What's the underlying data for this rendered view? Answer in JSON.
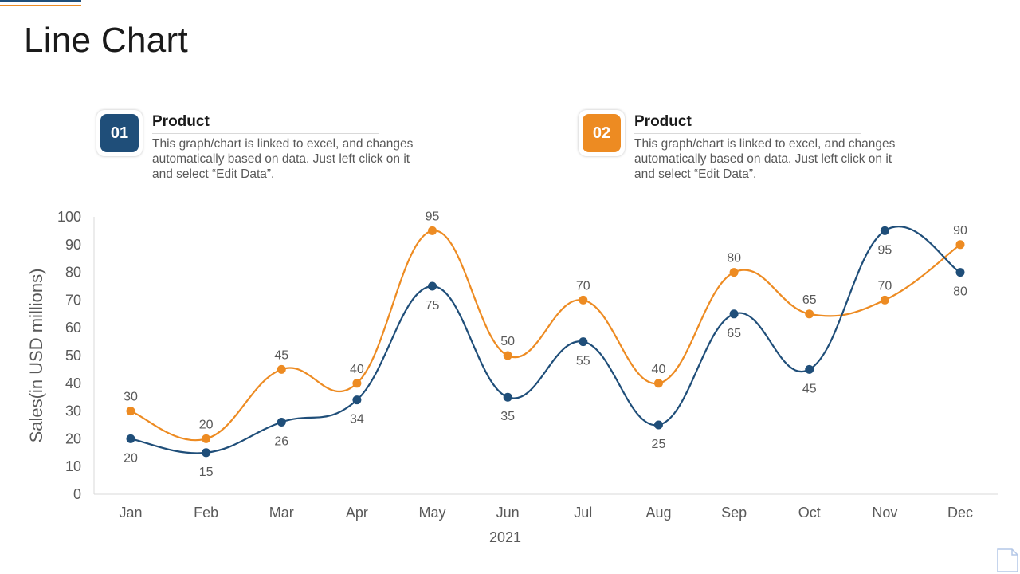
{
  "page": {
    "title": "Line Chart"
  },
  "colors": {
    "series1": "#1f4e79",
    "series2": "#ed8b22",
    "axis": "#d9d9d9",
    "text": "#595959"
  },
  "legend": [
    {
      "number": "01",
      "title": "Product",
      "description": "This graph/chart is linked to excel, and changes automatically based on data. Just left click on it and select “Edit Data”."
    },
    {
      "number": "02",
      "title": "Product",
      "description": "This graph/chart is linked to excel, and changes automatically based on data. Just left click on it and select “Edit Data”."
    }
  ],
  "chart_data": {
    "type": "line",
    "smooth": true,
    "categories": [
      "Jan",
      "Feb",
      "Mar",
      "Apr",
      "May",
      "Jun",
      "Jul",
      "Aug",
      "Sep",
      "Oct",
      "Nov",
      "Dec"
    ],
    "series": [
      {
        "name": "Product 01",
        "color": "#1f4e79",
        "label_position": "below",
        "values": [
          20,
          15,
          26,
          34,
          75,
          35,
          55,
          25,
          65,
          45,
          95,
          80
        ]
      },
      {
        "name": "Product 02",
        "color": "#ed8b22",
        "label_position": "above",
        "values": [
          30,
          20,
          45,
          40,
          95,
          50,
          70,
          40,
          80,
          65,
          70,
          90
        ]
      }
    ],
    "title": "",
    "xlabel": "2021",
    "ylabel": "Sales(in USD millions)",
    "ylim": [
      0,
      100
    ],
    "yticks": [
      0,
      10,
      20,
      30,
      40,
      50,
      60,
      70,
      80,
      90,
      100
    ],
    "grid": false,
    "legend": "top"
  }
}
